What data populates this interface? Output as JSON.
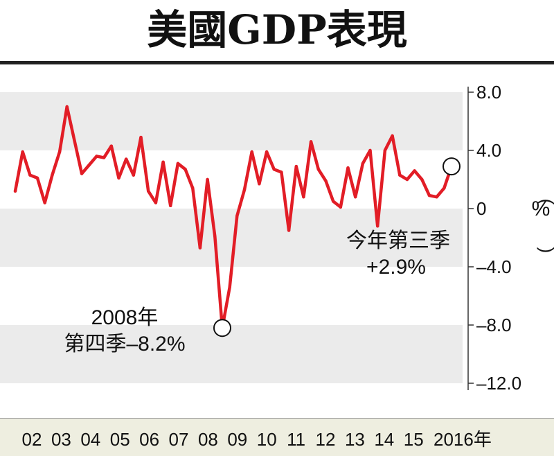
{
  "title": "美國GDP表現",
  "unit_label": "%",
  "annotations": {
    "low_line1": "2008年",
    "low_line2": "第四季–8.2%",
    "latest_line1": "今年第三季",
    "latest_line2": "+2.9%"
  },
  "colors": {
    "line": "#e21d26",
    "band": "#ebebeb",
    "axis": "#333333",
    "xbar": "#eeeee0"
  },
  "chart_data": {
    "type": "line",
    "title": "美國GDP表現",
    "ylabel": "%",
    "xlabel": "",
    "ylim": [
      -12.0,
      8.0
    ],
    "y_ticks": [
      "8.0",
      "4.0",
      "0",
      "–4.0",
      "–8.0",
      "–12.0"
    ],
    "y_tick_values": [
      8,
      4,
      0,
      -4,
      -8,
      -12
    ],
    "x_tick_labels": [
      "02",
      "03",
      "04",
      "05",
      "06",
      "07",
      "08",
      "09",
      "10",
      "11",
      "12",
      "13",
      "14",
      "15",
      "2016年"
    ],
    "grid": "alternating horizontal bands",
    "series": [
      {
        "values": [
          1.2,
          3.9,
          2.3,
          2.1,
          0.4,
          2.3,
          3.9,
          7.0,
          4.7,
          2.4,
          3.0,
          3.6,
          3.5,
          4.3,
          2.1,
          3.4,
          2.3,
          4.9,
          1.2,
          0.4,
          3.2,
          0.2,
          3.1,
          2.7,
          1.4,
          -2.7,
          2.0,
          -1.9,
          -8.2,
          -5.4,
          -0.5,
          1.3,
          3.9,
          1.7,
          3.9,
          2.7,
          2.5,
          -1.5,
          2.9,
          0.8,
          4.6,
          2.7,
          1.9,
          0.5,
          0.1,
          2.8,
          0.8,
          3.1,
          4.0,
          -1.2,
          4.0,
          5.0,
          2.3,
          2.0,
          2.6,
          2.0,
          0.9,
          0.8,
          1.4,
          2.9
        ]
      }
    ]
  }
}
